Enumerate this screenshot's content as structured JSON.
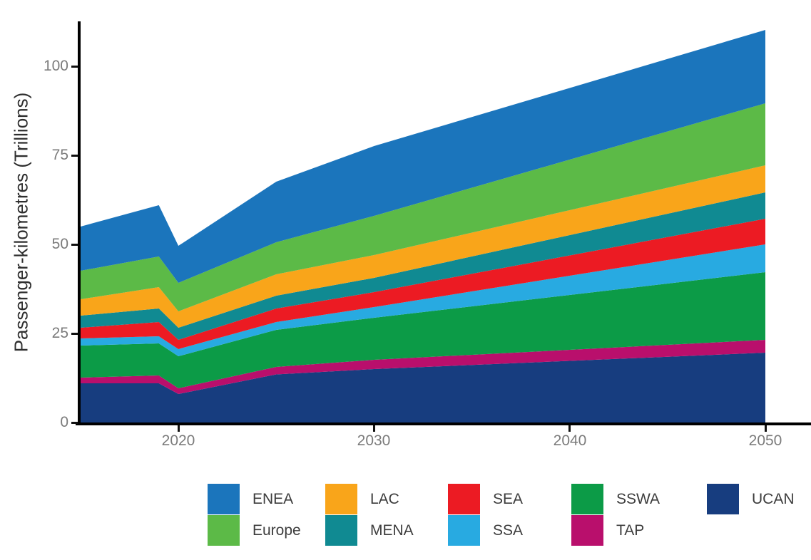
{
  "y_axis": {
    "title": "Passenger-kilometres (Trillions)",
    "ticks": [
      0,
      25,
      50,
      75,
      100
    ],
    "tick_labels": [
      "0",
      "25",
      "50",
      "75",
      "100"
    ]
  },
  "x_axis": {
    "ticks": [
      2020,
      2030,
      2040,
      2050
    ],
    "tick_labels": [
      "2020",
      "2030",
      "2040",
      "2050"
    ]
  },
  "legend": {
    "rows": [
      [
        "ENEA",
        "LAC",
        "SEA",
        "SSWA",
        "UCAN"
      ],
      [
        "Europe",
        "MENA",
        "SSA",
        "TAP"
      ]
    ]
  },
  "chart_data": {
    "type": "area",
    "stacked": true,
    "title": "",
    "xlabel": "",
    "ylabel": "Passenger-kilometres (Trillions)",
    "xlim": [
      2015,
      2050
    ],
    "ylim": [
      0,
      111
    ],
    "grid": false,
    "legend_position": "bottom",
    "x": [
      2015,
      2019,
      2020,
      2025,
      2030,
      2040,
      2050
    ],
    "series": [
      {
        "name": "UCAN",
        "color": "#173D7F",
        "values": [
          11.0,
          11.0,
          8.0,
          13.5,
          15.0,
          17.3,
          19.6
        ]
      },
      {
        "name": "TAP",
        "color": "#B90F6C",
        "values": [
          1.6,
          2.2,
          1.6,
          2.1,
          2.6,
          3.1,
          3.6
        ]
      },
      {
        "name": "SSWA",
        "color": "#0C9B47",
        "values": [
          9.0,
          9.0,
          9.0,
          10.4,
          11.8,
          15.4,
          19.0
        ]
      },
      {
        "name": "SSA",
        "color": "#28AAE1",
        "values": [
          2.0,
          2.0,
          2.0,
          2.2,
          3.0,
          5.4,
          7.8
        ]
      },
      {
        "name": "SEA",
        "color": "#EC1B23",
        "values": [
          3.0,
          4.0,
          2.6,
          3.8,
          4.2,
          5.7,
          7.2
        ]
      },
      {
        "name": "MENA",
        "color": "#108A92",
        "values": [
          3.4,
          3.8,
          3.4,
          3.6,
          4.0,
          5.7,
          7.4
        ]
      },
      {
        "name": "LAC",
        "color": "#F9A51A",
        "values": [
          4.6,
          6.0,
          4.6,
          6.0,
          6.4,
          7.0,
          7.6
        ]
      },
      {
        "name": "Europe",
        "color": "#5CBA47",
        "values": [
          8.0,
          8.6,
          8.0,
          9.0,
          11.0,
          14.2,
          17.4
        ]
      },
      {
        "name": "ENEA",
        "color": "#1B75BC",
        "values": [
          12.4,
          14.4,
          10.4,
          17.0,
          19.6,
          20.1,
          20.6
        ]
      }
    ]
  }
}
